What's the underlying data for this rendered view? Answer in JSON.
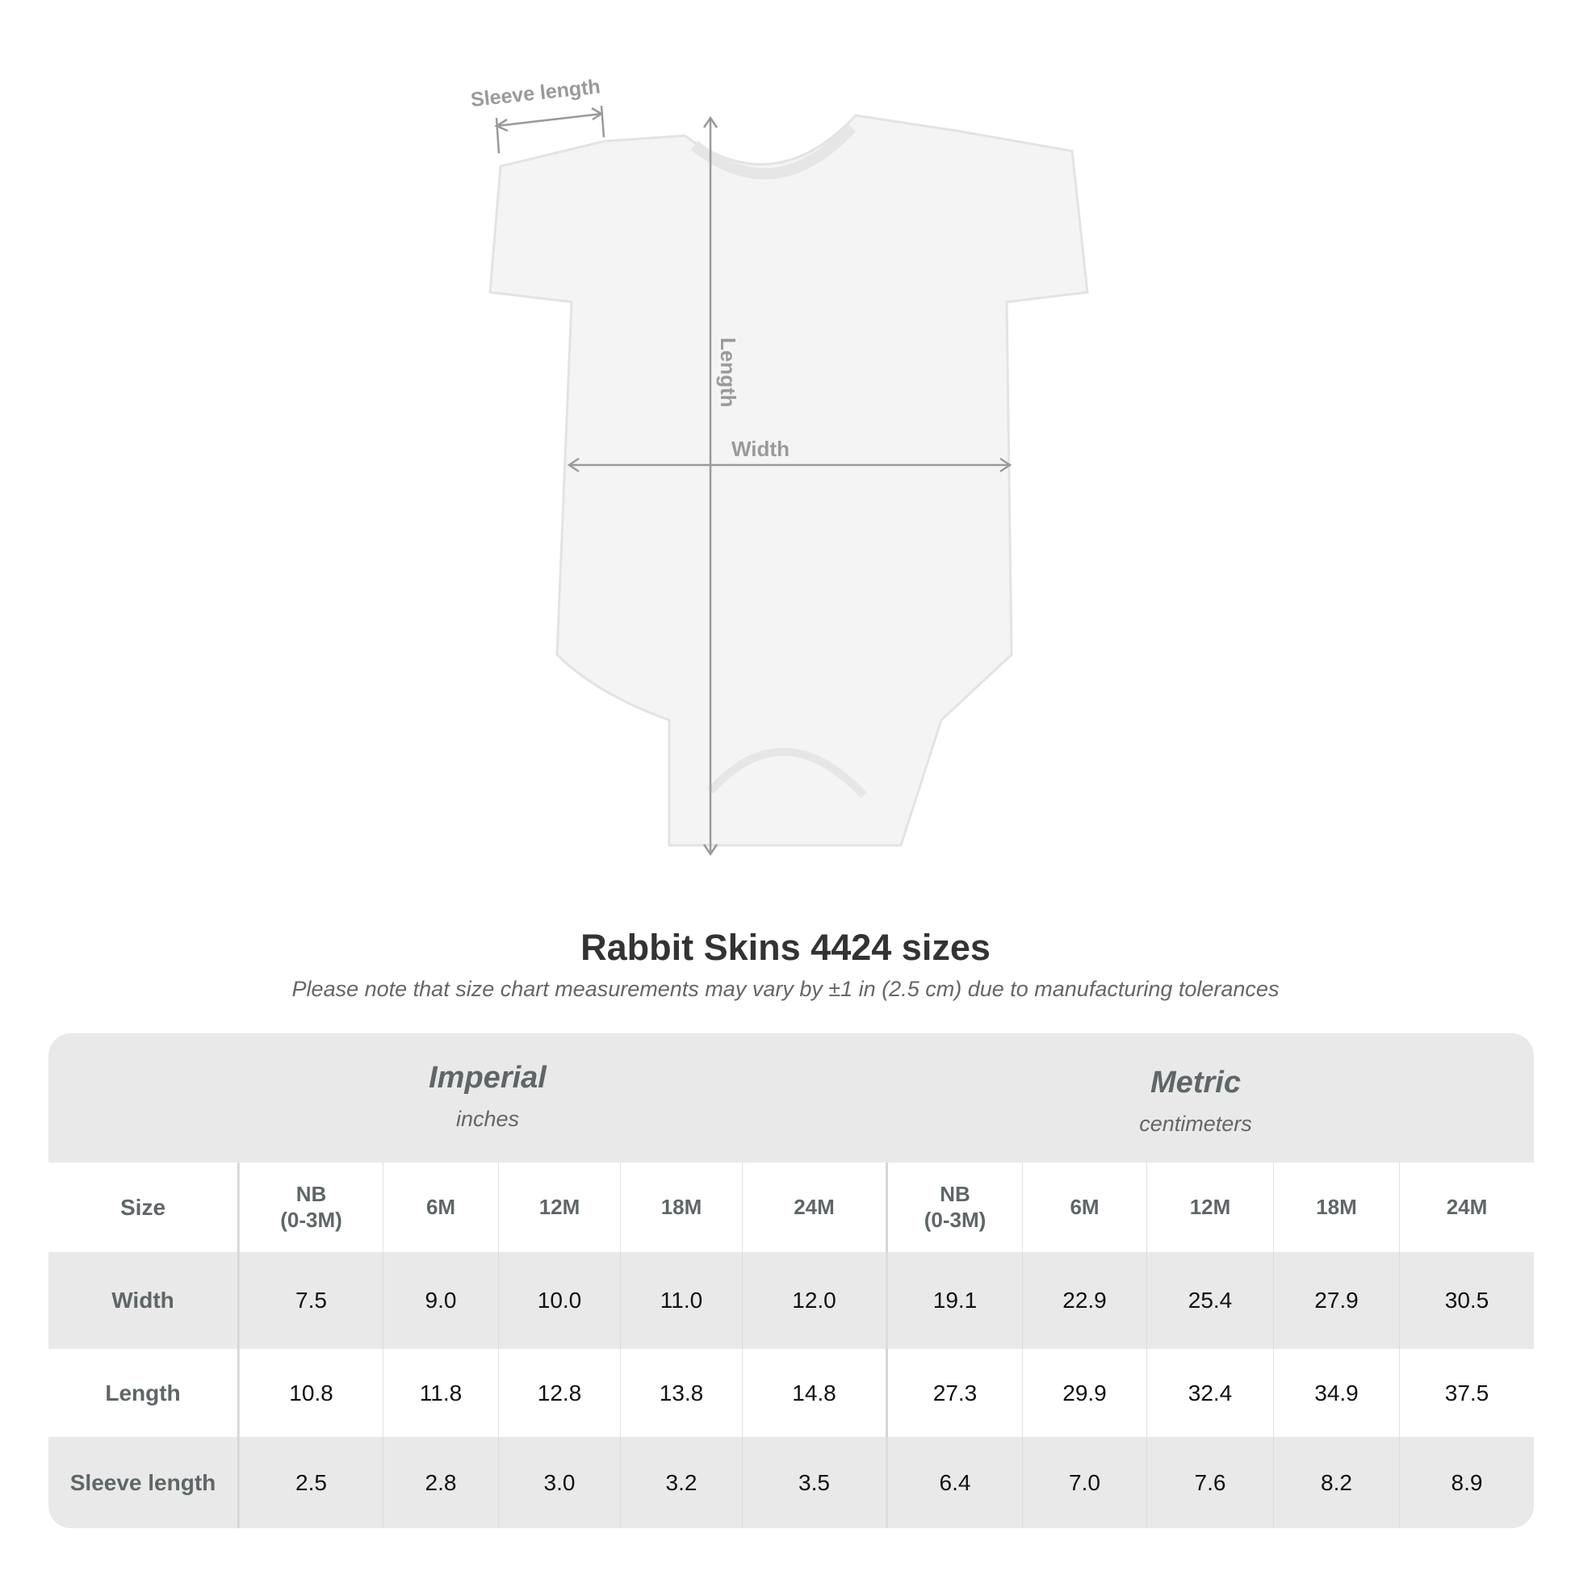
{
  "diagram": {
    "labels": {
      "sleeve": "Sleeve length",
      "length": "Length",
      "width": "Width"
    },
    "colors": {
      "annotation": "#9a9a9a",
      "garment": "#f4f4f4"
    }
  },
  "title": "Rabbit Skins 4424 sizes",
  "subtitle": "Please note that size chart measurements may vary by ±1 in (2.5 cm) due to manufacturing tolerances",
  "table": {
    "imperial": {
      "name": "Imperial",
      "unit": "inches"
    },
    "metric": {
      "name": "Metric",
      "unit": "centimeters"
    },
    "size_label": "Size",
    "sizes": [
      "NB\n(0-3M)",
      "6M",
      "12M",
      "18M",
      "24M",
      "NB\n(0-3M)",
      "6M",
      "12M",
      "18M",
      "24M"
    ],
    "rows": [
      {
        "label": "Width",
        "values": [
          "7.5",
          "9.0",
          "10.0",
          "11.0",
          "12.0",
          "19.1",
          "22.9",
          "25.4",
          "27.9",
          "30.5"
        ]
      },
      {
        "label": "Length",
        "values": [
          "10.8",
          "11.8",
          "12.8",
          "13.8",
          "14.8",
          "27.3",
          "29.9",
          "32.4",
          "34.9",
          "37.5"
        ]
      },
      {
        "label": "Sleeve length",
        "values": [
          "2.5",
          "2.8",
          "3.0",
          "3.2",
          "3.5",
          "6.4",
          "7.0",
          "7.6",
          "8.2",
          "8.9"
        ]
      }
    ]
  }
}
